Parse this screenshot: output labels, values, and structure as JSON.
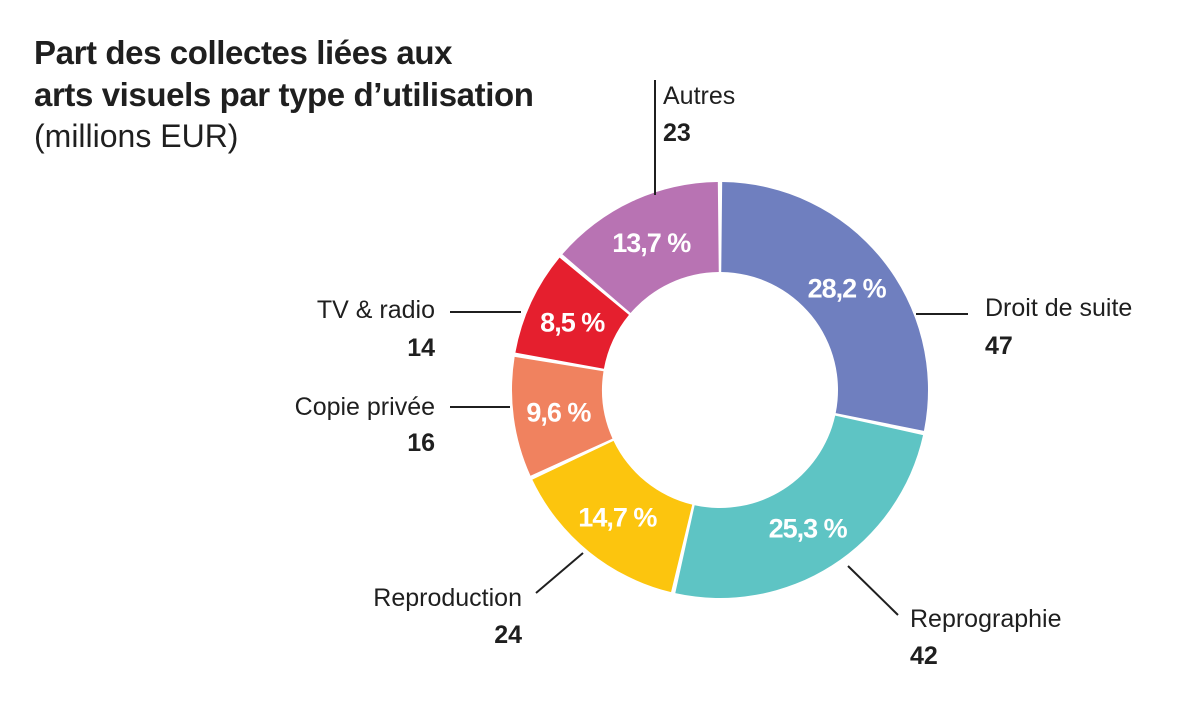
{
  "chart_data": {
    "type": "pie",
    "donut": true,
    "title_line1": "Part des collectes liées aux",
    "title_line2": "arts visuels par type d’utilisation",
    "subtitle": "(millions EUR)",
    "slices": [
      {
        "label": "Droit de suite",
        "value": 47,
        "percent_label": "28,2 %",
        "percent": 28.2,
        "color": "#6f7fbf"
      },
      {
        "label": "Reprographie",
        "value": 42,
        "percent_label": "25,3 %",
        "percent": 25.3,
        "color": "#5ec4c4"
      },
      {
        "label": "Reproduction",
        "value": 24,
        "percent_label": "14,7 %",
        "percent": 14.7,
        "color": "#fcc50e"
      },
      {
        "label": "Copie privée",
        "value": 16,
        "percent_label": "9,6 %",
        "percent": 9.6,
        "color": "#f0825f"
      },
      {
        "label": "TV & radio",
        "value": 14,
        "percent_label": "8,5 %",
        "percent": 8.5,
        "color": "#e51f2e"
      },
      {
        "label": "Autres",
        "value": 23,
        "percent_label": "13,7 %",
        "percent": 13.7,
        "color": "#b873b3"
      }
    ]
  }
}
